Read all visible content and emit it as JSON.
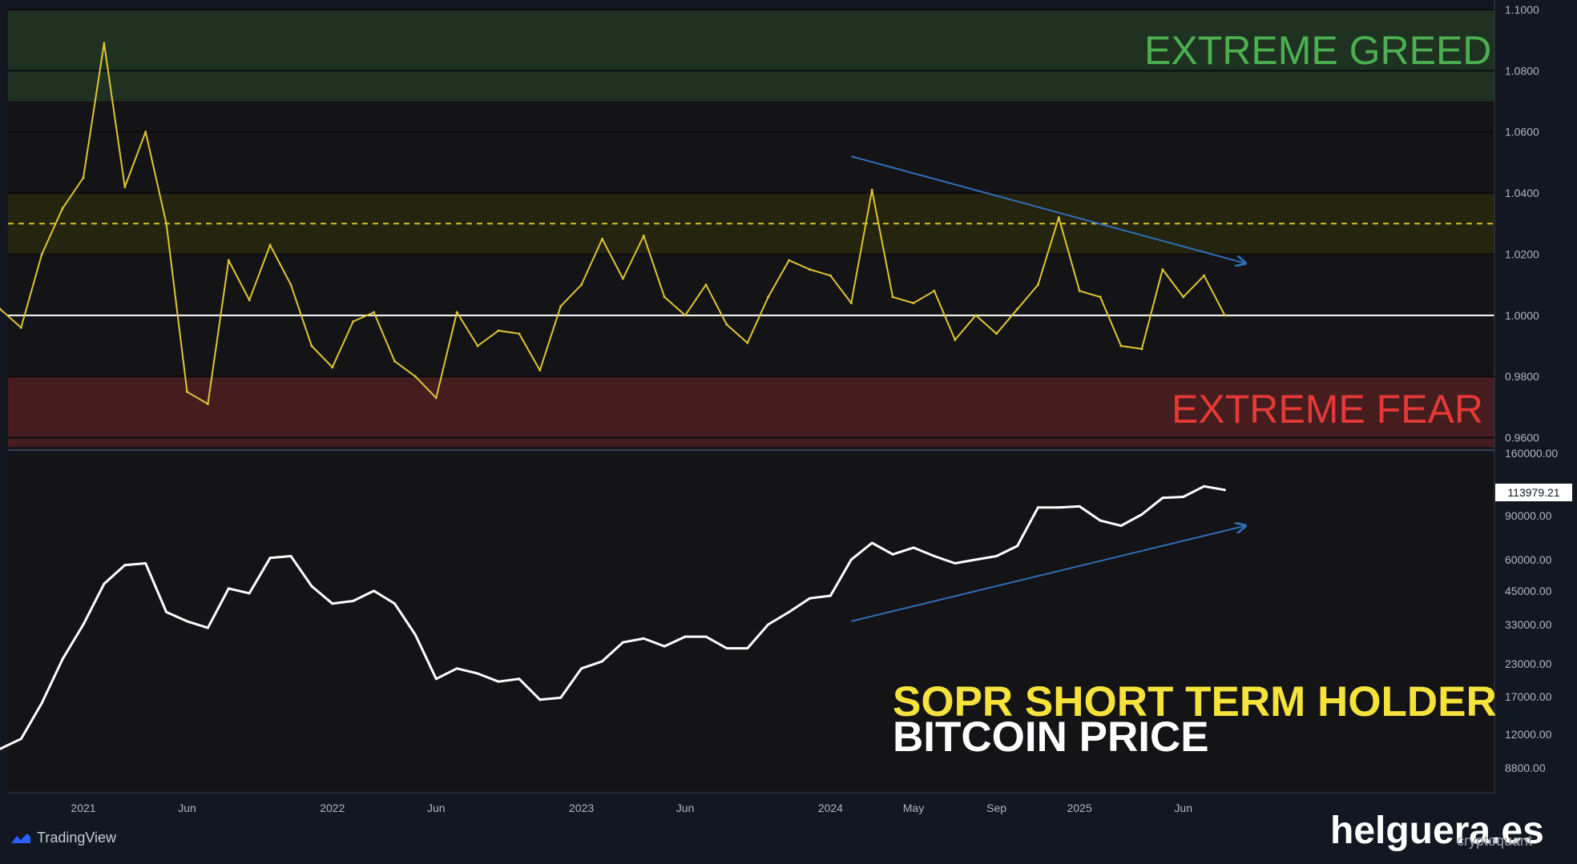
{
  "annotations": {
    "extreme_greed": "EXTREME GREED",
    "extreme_fear": "EXTREME FEAR",
    "legend_sopr": "SOPR SHORT TERM HOLDER",
    "legend_price": "BITCOIN PRICE",
    "brand": "helguera.es",
    "platform": "TradingView",
    "source": "cryptoquant"
  },
  "colors": {
    "background": "#131722",
    "sopr_line": "#e0c534",
    "price_line": "#ffffff",
    "greed_zone": "#1f3222",
    "caution_zone": "#24240f",
    "fear_zone": "#451d1f",
    "trend_arrow": "#2e6fb5",
    "baseline": "#ffffff"
  },
  "chart_data": [
    {
      "type": "line",
      "name": "SOPR SHORT TERM HOLDER",
      "ylim": [
        0.957,
        1.1
      ],
      "y_ticks": [
        "1.1000",
        "1.0800",
        "1.0600",
        "1.0400",
        "1.0200",
        "1.0000",
        "0.9800",
        "0.9600"
      ],
      "bands": [
        {
          "label": "EXTREME GREED",
          "from": 1.07,
          "to": 1.1
        },
        {
          "label": "",
          "from": 1.02,
          "to": 1.04
        },
        {
          "label": "EXTREME FEAR",
          "from": 0.957,
          "to": 0.98
        }
      ],
      "reference_lines": [
        {
          "value": 1.0,
          "style": "solid"
        },
        {
          "value": 1.03,
          "style": "dashed"
        }
      ],
      "trend_arrow": {
        "from": [
          "2024-02",
          1.052
        ],
        "to": [
          "2025-09",
          1.017
        ]
      },
      "x": [
        "2020-09",
        "2020-10",
        "2020-11",
        "2020-12",
        "2021-01",
        "2021-02",
        "2021-03",
        "2021-04",
        "2021-05",
        "2021-06",
        "2021-07",
        "2021-08",
        "2021-09",
        "2021-10",
        "2021-11",
        "2021-12",
        "2022-01",
        "2022-02",
        "2022-03",
        "2022-04",
        "2022-05",
        "2022-06",
        "2022-07",
        "2022-08",
        "2022-09",
        "2022-10",
        "2022-11",
        "2022-12",
        "2023-01",
        "2023-02",
        "2023-03",
        "2023-04",
        "2023-05",
        "2023-06",
        "2023-07",
        "2023-08",
        "2023-09",
        "2023-10",
        "2023-11",
        "2023-12",
        "2024-01",
        "2024-02",
        "2024-03",
        "2024-04",
        "2024-05",
        "2024-06",
        "2024-07",
        "2024-08",
        "2024-09",
        "2024-10",
        "2024-11",
        "2024-12",
        "2025-01",
        "2025-02",
        "2025-03",
        "2025-04",
        "2025-05",
        "2025-06",
        "2025-07",
        "2025-08"
      ],
      "values": [
        1.002,
        0.996,
        1.02,
        1.035,
        1.045,
        1.089,
        1.042,
        1.06,
        1.03,
        0.975,
        0.971,
        1.018,
        1.005,
        1.023,
        1.01,
        0.99,
        0.983,
        0.998,
        1.001,
        0.985,
        0.98,
        0.973,
        1.001,
        0.99,
        0.995,
        0.994,
        0.982,
        1.003,
        1.01,
        1.025,
        1.012,
        1.026,
        1.006,
        1.0,
        1.01,
        0.997,
        0.991,
        1.006,
        1.018,
        1.015,
        1.013,
        1.004,
        1.041,
        1.006,
        1.004,
        1.008,
        0.992,
        1.0,
        0.994,
        1.002,
        1.01,
        1.032,
        1.008,
        1.006,
        0.99,
        0.989,
        1.015,
        1.006,
        1.013,
        1.0
      ]
    },
    {
      "type": "line",
      "name": "BITCOIN PRICE",
      "scale": "log",
      "ylim": [
        7000,
        160000
      ],
      "y_ticks": [
        "160000.00",
        "90000.00",
        "60000.00",
        "45000.00",
        "33000.00",
        "23000.00",
        "17000.00",
        "12000.00",
        "8800.00"
      ],
      "last_value_label": "113979.21",
      "trend_arrow": {
        "from": [
          "2024-02",
          34000
        ],
        "to": [
          "2025-09",
          82000
        ]
      },
      "x": [
        "2020-09",
        "2020-10",
        "2020-11",
        "2020-12",
        "2021-01",
        "2021-02",
        "2021-03",
        "2021-04",
        "2021-05",
        "2021-06",
        "2021-07",
        "2021-08",
        "2021-09",
        "2021-10",
        "2021-11",
        "2021-12",
        "2022-01",
        "2022-02",
        "2022-03",
        "2022-04",
        "2022-05",
        "2022-06",
        "2022-07",
        "2022-08",
        "2022-09",
        "2022-10",
        "2022-11",
        "2022-12",
        "2023-01",
        "2023-02",
        "2023-03",
        "2023-04",
        "2023-05",
        "2023-06",
        "2023-07",
        "2023-08",
        "2023-09",
        "2023-10",
        "2023-11",
        "2023-12",
        "2024-01",
        "2024-02",
        "2024-03",
        "2024-04",
        "2024-05",
        "2024-06",
        "2024-07",
        "2024-08",
        "2024-09",
        "2024-10",
        "2024-11",
        "2024-12",
        "2025-01",
        "2025-02",
        "2025-03",
        "2025-04",
        "2025-05",
        "2025-06",
        "2025-07",
        "2025-08"
      ],
      "values": [
        10500,
        11500,
        16000,
        24000,
        33000,
        48000,
        57000,
        58000,
        37000,
        34000,
        32000,
        46000,
        44000,
        61000,
        62000,
        47000,
        40000,
        41000,
        45000,
        40000,
        30000,
        20000,
        22000,
        21000,
        19500,
        20000,
        16500,
        16800,
        22000,
        23500,
        28000,
        29000,
        27000,
        29500,
        29500,
        26500,
        26500,
        33000,
        37000,
        42000,
        43000,
        60000,
        70000,
        63000,
        67000,
        62000,
        58000,
        60000,
        62000,
        68000,
        97000,
        97000,
        98000,
        86000,
        82000,
        91000,
        106000,
        107000,
        118000,
        114000
      ]
    }
  ],
  "x_ticks": [
    "2021",
    "Jun",
    "2022",
    "Jun",
    "2023",
    "Jun",
    "2024",
    "May",
    "Sep",
    "2025",
    "Jun"
  ]
}
